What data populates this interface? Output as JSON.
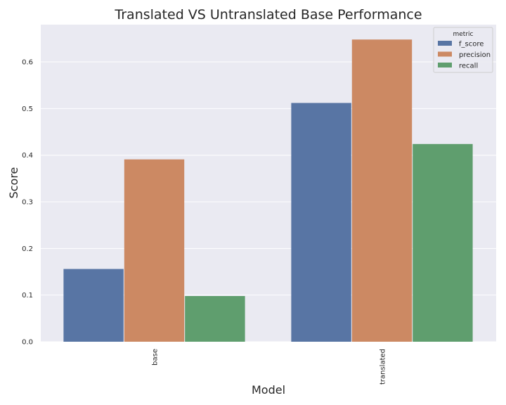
{
  "chart_data": {
    "type": "bar",
    "title": "Translated VS Untranslated Base Performance",
    "xlabel": "Model",
    "ylabel": "Score",
    "categories": [
      "base",
      "translated"
    ],
    "series": [
      {
        "name": "f_score",
        "values": [
          0.156,
          0.512
        ],
        "color": "#5875a4"
      },
      {
        "name": "precision",
        "values": [
          0.391,
          0.648
        ],
        "color": "#cc8963"
      },
      {
        "name": "recall",
        "values": [
          0.098,
          0.424
        ],
        "color": "#5f9e6e"
      }
    ],
    "ylim": [
      0,
      0.68
    ],
    "yticks": [
      "0.0",
      "0.1",
      "0.2",
      "0.3",
      "0.4",
      "0.5",
      "0.6"
    ],
    "legend": {
      "title": "metric",
      "placement": "top-right"
    },
    "grid": true,
    "background": "#eaeaf2"
  }
}
